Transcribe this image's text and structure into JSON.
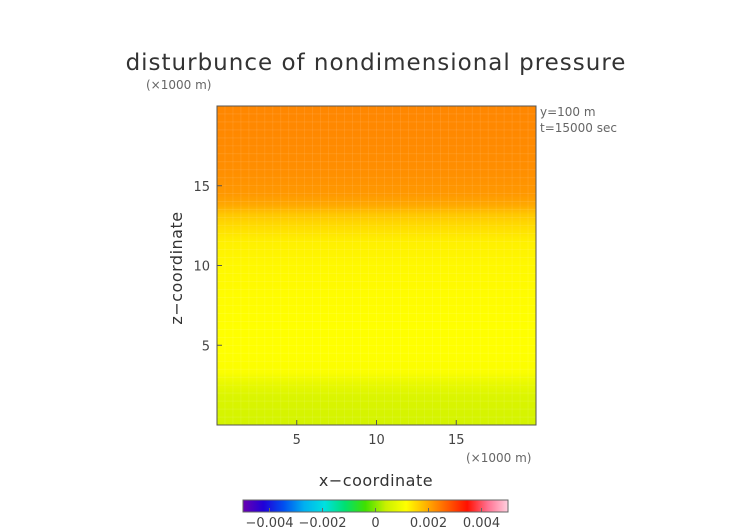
{
  "chart_data": {
    "type": "heatmap",
    "title": "disturbunce of nondimensional pressure",
    "scale_label_y": "(×1000 m)",
    "scale_label_x": "(×1000 m)",
    "xlabel": "x−coordinate",
    "ylabel": "z−coordinate",
    "annotations": [
      "y=100 m",
      "t=15000 sec"
    ],
    "xlim": [
      0,
      20
    ],
    "ylim": [
      0,
      20
    ],
    "x_ticks": [
      5,
      10,
      15
    ],
    "y_ticks": [
      5,
      10,
      15
    ],
    "colorbar": {
      "range": [
        -0.005,
        0.005
      ],
      "tick_values": [
        -0.004,
        -0.002,
        0,
        0.002,
        0.004
      ],
      "tick_labels": [
        "−0.004",
        "−0.002",
        "0",
        "0.002",
        "0.004"
      ],
      "colors": [
        "#6a00b0",
        "#2000d8",
        "#0050f0",
        "#00b0f0",
        "#00e0e0",
        "#00e070",
        "#40e000",
        "#c8f000",
        "#ffff00",
        "#ffb000",
        "#ff6000",
        "#ff1000",
        "#ff7090",
        "#ffd0e0"
      ]
    },
    "profile": {
      "description": "field varies only with z (horizontal bands)",
      "z": [
        0.0,
        1.0,
        1.8,
        2.6,
        3.3,
        4.5,
        6.0,
        8.0,
        10.0,
        11.5,
        12.5,
        13.2,
        13.8,
        14.5,
        16.0,
        18.0,
        19.5
      ],
      "value": [
        0.00055,
        0.0006,
        0.00065,
        0.00085,
        0.0011,
        0.00115,
        0.00115,
        0.00118,
        0.00122,
        0.0013,
        0.0015,
        0.0017,
        0.002,
        0.00215,
        0.00225,
        0.0023,
        0.00232
      ]
    }
  }
}
